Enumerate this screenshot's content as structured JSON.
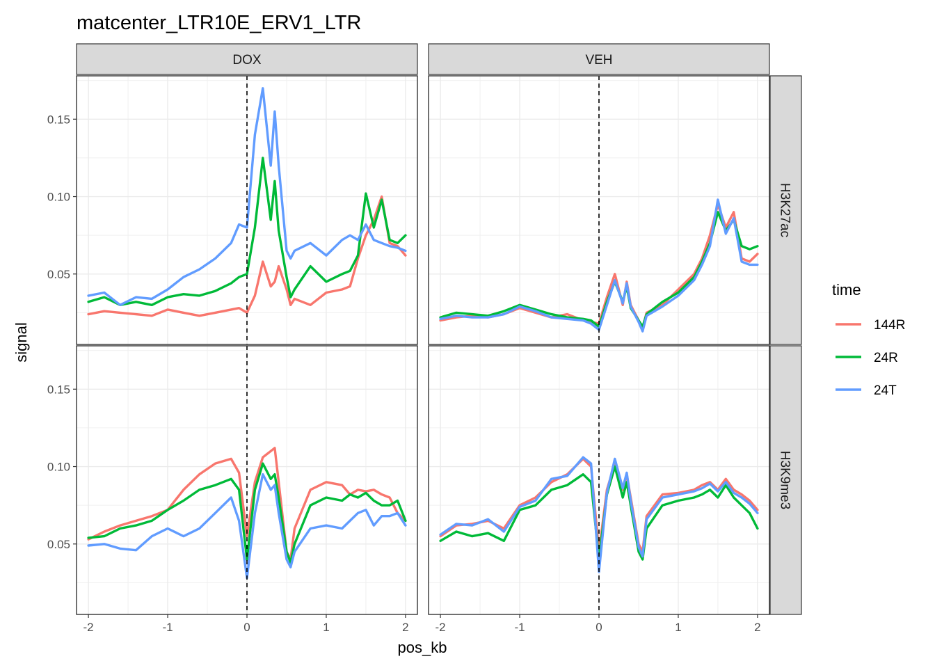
{
  "chart_data": {
    "type": "line",
    "title": "matcenter_LTR10E_ERV1_LTR",
    "xlabel": "pos_kb",
    "ylabel": "signal",
    "xlim": [
      -2.15,
      2.15
    ],
    "ylim": [
      0.0045,
      0.178
    ],
    "x_ticks": [
      -2,
      -1,
      0,
      1,
      2
    ],
    "x_tick_labels": [
      "-2",
      "-1",
      "0",
      "1",
      "2"
    ],
    "y_ticks": [
      0.05,
      0.1,
      0.15
    ],
    "y_tick_labels": [
      "0.05",
      "0.10",
      "0.15"
    ],
    "col_facets": [
      "DOX",
      "VEH"
    ],
    "row_facets": [
      "H3K27ac",
      "H3K9me3"
    ],
    "vline_x": 0,
    "grid": true,
    "legend": {
      "title": "time",
      "position": "right",
      "entries": [
        {
          "name": "144R",
          "color": "#F8766D"
        },
        {
          "name": "24R",
          "color": "#00BA38"
        },
        {
          "name": "24T",
          "color": "#619CFF"
        }
      ]
    },
    "x": [
      -2.0,
      -1.8,
      -1.6,
      -1.4,
      -1.2,
      -1.0,
      -0.8,
      -0.6,
      -0.4,
      -0.2,
      -0.1,
      0.0,
      0.1,
      0.2,
      0.3,
      0.35,
      0.4,
      0.5,
      0.55,
      0.6,
      0.8,
      1.0,
      1.2,
      1.3,
      1.4,
      1.5,
      1.6,
      1.7,
      1.8,
      1.9,
      2.0
    ],
    "panels": [
      {
        "col": "DOX",
        "row": "H3K27ac",
        "series": [
          {
            "name": "144R",
            "values": [
              0.024,
              0.026,
              0.025,
              0.024,
              0.023,
              0.027,
              0.025,
              0.023,
              0.025,
              0.027,
              0.028,
              0.025,
              0.036,
              0.058,
              0.042,
              0.045,
              0.055,
              0.04,
              0.03,
              0.034,
              0.03,
              0.038,
              0.04,
              0.042,
              0.06,
              0.075,
              0.085,
              0.1,
              0.07,
              0.068,
              0.062
            ]
          },
          {
            "name": "24R",
            "values": [
              0.032,
              0.035,
              0.03,
              0.032,
              0.03,
              0.035,
              0.037,
              0.036,
              0.039,
              0.044,
              0.048,
              0.05,
              0.08,
              0.125,
              0.085,
              0.11,
              0.078,
              0.048,
              0.035,
              0.04,
              0.055,
              0.045,
              0.05,
              0.052,
              0.062,
              0.102,
              0.08,
              0.098,
              0.072,
              0.07,
              0.075
            ]
          },
          {
            "name": "24T",
            "values": [
              0.036,
              0.038,
              0.03,
              0.035,
              0.034,
              0.04,
              0.048,
              0.053,
              0.06,
              0.07,
              0.082,
              0.08,
              0.14,
              0.17,
              0.12,
              0.155,
              0.12,
              0.065,
              0.06,
              0.065,
              0.07,
              0.062,
              0.072,
              0.075,
              0.072,
              0.082,
              0.072,
              0.07,
              0.068,
              0.067,
              0.065
            ]
          }
        ]
      },
      {
        "col": "VEH",
        "row": "H3K27ac",
        "series": [
          {
            "name": "144R",
            "values": [
              0.02,
              0.022,
              0.023,
              0.022,
              0.024,
              0.028,
              0.025,
              0.022,
              0.024,
              0.02,
              0.019,
              0.018,
              0.035,
              0.05,
              0.03,
              0.045,
              0.03,
              0.02,
              0.015,
              0.025,
              0.03,
              0.04,
              0.05,
              0.06,
              0.075,
              0.095,
              0.08,
              0.09,
              0.06,
              0.058,
              0.063
            ]
          },
          {
            "name": "24R",
            "values": [
              0.022,
              0.025,
              0.024,
              0.023,
              0.026,
              0.03,
              0.027,
              0.024,
              0.022,
              0.021,
              0.02,
              0.016,
              0.032,
              0.045,
              0.032,
              0.042,
              0.028,
              0.02,
              0.016,
              0.024,
              0.032,
              0.038,
              0.048,
              0.058,
              0.07,
              0.09,
              0.078,
              0.085,
              0.068,
              0.066,
              0.068
            ]
          },
          {
            "name": "24T",
            "values": [
              0.021,
              0.023,
              0.022,
              0.022,
              0.024,
              0.029,
              0.026,
              0.022,
              0.021,
              0.02,
              0.018,
              0.014,
              0.03,
              0.046,
              0.031,
              0.044,
              0.029,
              0.019,
              0.013,
              0.023,
              0.029,
              0.036,
              0.046,
              0.056,
              0.068,
              0.098,
              0.076,
              0.086,
              0.058,
              0.056,
              0.056
            ]
          }
        ]
      },
      {
        "col": "DOX",
        "row": "H3K9me3",
        "series": [
          {
            "name": "144R",
            "values": [
              0.053,
              0.058,
              0.062,
              0.065,
              0.068,
              0.072,
              0.085,
              0.095,
              0.102,
              0.105,
              0.096,
              0.055,
              0.09,
              0.106,
              0.11,
              0.112,
              0.09,
              0.045,
              0.04,
              0.06,
              0.085,
              0.09,
              0.088,
              0.082,
              0.085,
              0.084,
              0.085,
              0.082,
              0.08,
              0.07,
              0.065
            ]
          },
          {
            "name": "24R",
            "values": [
              0.054,
              0.055,
              0.06,
              0.062,
              0.065,
              0.072,
              0.078,
              0.085,
              0.088,
              0.092,
              0.085,
              0.04,
              0.085,
              0.102,
              0.092,
              0.095,
              0.08,
              0.045,
              0.038,
              0.05,
              0.075,
              0.08,
              0.078,
              0.082,
              0.08,
              0.083,
              0.078,
              0.075,
              0.075,
              0.078,
              0.065
            ]
          },
          {
            "name": "24T",
            "values": [
              0.049,
              0.05,
              0.047,
              0.046,
              0.055,
              0.06,
              0.055,
              0.06,
              0.07,
              0.08,
              0.065,
              0.028,
              0.07,
              0.095,
              0.085,
              0.088,
              0.07,
              0.04,
              0.035,
              0.045,
              0.06,
              0.062,
              0.06,
              0.065,
              0.07,
              0.072,
              0.062,
              0.068,
              0.068,
              0.07,
              0.062
            ]
          }
        ]
      },
      {
        "col": "VEH",
        "row": "H3K9me3",
        "series": [
          {
            "name": "144R",
            "values": [
              0.055,
              0.062,
              0.063,
              0.065,
              0.06,
              0.075,
              0.08,
              0.09,
              0.095,
              0.105,
              0.1,
              0.045,
              0.085,
              0.102,
              0.085,
              0.095,
              0.08,
              0.05,
              0.045,
              0.068,
              0.082,
              0.083,
              0.085,
              0.088,
              0.09,
              0.085,
              0.092,
              0.085,
              0.082,
              0.078,
              0.072
            ]
          },
          {
            "name": "24R",
            "values": [
              0.052,
              0.058,
              0.055,
              0.057,
              0.052,
              0.072,
              0.075,
              0.085,
              0.088,
              0.095,
              0.09,
              0.04,
              0.082,
              0.1,
              0.08,
              0.09,
              0.075,
              0.045,
              0.04,
              0.06,
              0.075,
              0.078,
              0.08,
              0.082,
              0.085,
              0.08,
              0.088,
              0.08,
              0.075,
              0.07,
              0.06
            ]
          },
          {
            "name": "24T",
            "values": [
              0.056,
              0.063,
              0.062,
              0.066,
              0.058,
              0.074,
              0.078,
              0.092,
              0.094,
              0.106,
              0.102,
              0.032,
              0.083,
              0.105,
              0.086,
              0.096,
              0.078,
              0.048,
              0.042,
              0.066,
              0.08,
              0.082,
              0.084,
              0.086,
              0.089,
              0.084,
              0.09,
              0.083,
              0.08,
              0.076,
              0.07
            ]
          }
        ]
      }
    ]
  }
}
